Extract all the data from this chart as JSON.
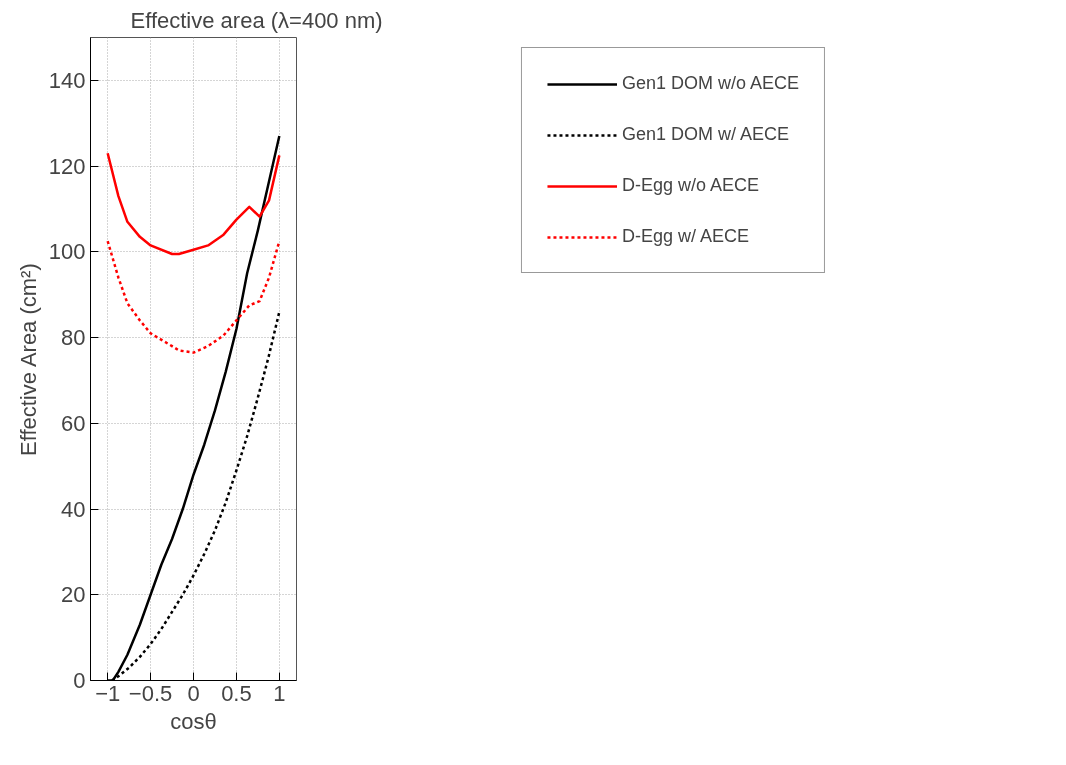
{
  "chart_data": {
    "type": "line",
    "title": "Effective area (λ=400 nm)",
    "xlabel": "cosθ",
    "ylabel": "Effective Area (cm²)",
    "xlim": [
      -1.2,
      1.2
    ],
    "xticks": [
      {
        "value": -1,
        "label": "−1"
      },
      {
        "value": -0.5,
        "label": "−0.5"
      },
      0,
      0.5,
      1
    ],
    "ylim": [
      0,
      150
    ],
    "yticks": [
      0,
      20,
      40,
      60,
      80,
      100,
      120,
      140
    ],
    "grid": true,
    "legend": "right",
    "marker": "none",
    "series": [
      {
        "name": "Gen1 DOM w/o AECE",
        "color": "#000000",
        "line_style": "solid",
        "x": [
          -1,
          -0.94,
          -0.875,
          -0.77,
          -0.625,
          -0.5,
          -0.375,
          -0.25,
          -0.125,
          0,
          0.125,
          0.25,
          0.375,
          0.5,
          0.625,
          0.75,
          0.875,
          1
        ],
        "values": [
          0,
          0,
          2,
          6,
          13,
          20,
          27,
          33,
          40,
          48,
          55,
          63,
          72,
          82,
          95,
          105,
          116,
          127
        ]
      },
      {
        "name": "Gen1 DOM w/ AECE",
        "color": "#000000",
        "line_style": "dotted",
        "x": [
          -0.95,
          -0.875,
          -0.75,
          -0.625,
          -0.5,
          -0.375,
          -0.25,
          -0.125,
          0,
          0.125,
          0.25,
          0.375,
          0.5,
          0.625,
          0.75,
          0.875,
          1
        ],
        "values": [
          0,
          1,
          3,
          5.5,
          8.5,
          12,
          16,
          20,
          24.5,
          29.5,
          35,
          41.5,
          49,
          57,
          66,
          75.5,
          86
        ]
      },
      {
        "name": "D-Egg w/o AECE",
        "color": "#ff0000",
        "line_style": "solid",
        "x": [
          -1,
          -0.875,
          -0.77,
          -0.625,
          -0.5,
          -0.25,
          -0.17,
          0,
          0.17,
          0.35,
          0.5,
          0.65,
          0.77,
          0.88,
          1
        ],
        "values": [
          123,
          113,
          107,
          103.5,
          101.5,
          99.5,
          99.5,
          100.5,
          101.5,
          104,
          107.5,
          110.5,
          108.2,
          112,
          122.5
        ]
      },
      {
        "name": "D-Egg w/ AECE",
        "color": "#ff0000",
        "line_style": "dotted",
        "x": [
          -1,
          -0.875,
          -0.77,
          -0.625,
          -0.5,
          -0.25,
          -0.17,
          0,
          0.17,
          0.35,
          0.5,
          0.65,
          0.77,
          0.88,
          1
        ],
        "values": [
          102.5,
          94,
          88,
          84,
          81,
          78,
          77,
          76.5,
          78,
          80.5,
          84,
          87.5,
          88.5,
          94,
          102.5
        ]
      }
    ]
  }
}
